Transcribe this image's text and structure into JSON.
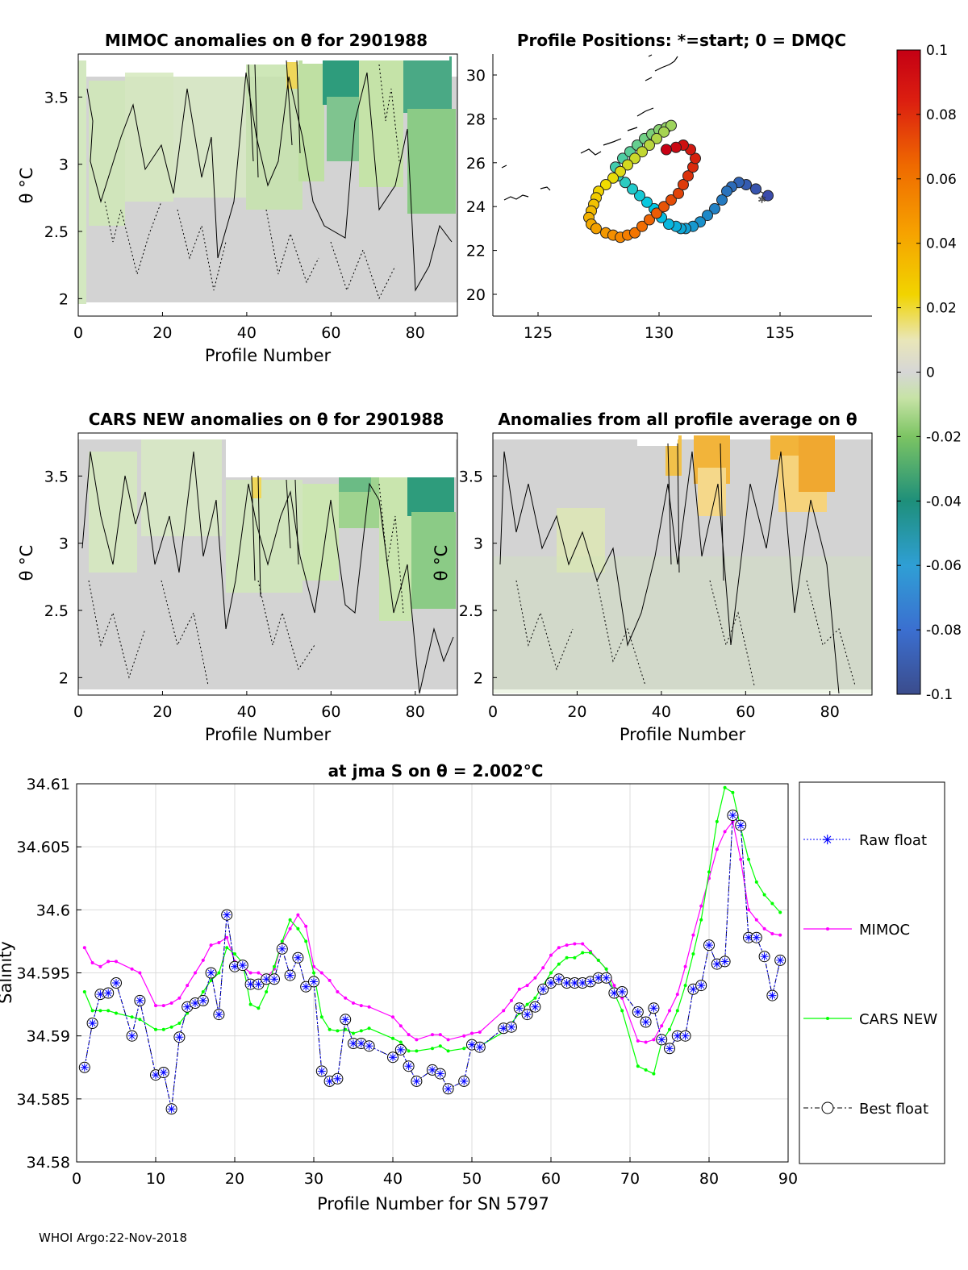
{
  "panels": {
    "mimoc": {
      "title": "MIMOC anomalies on θ  for 2901988",
      "xlabel": "Profile Number",
      "ylabel": "θ °C",
      "xticks": [
        "0",
        "20",
        "40",
        "60",
        "80"
      ],
      "yticks": [
        "2",
        "2.5",
        "3",
        "3.5"
      ]
    },
    "positions": {
      "title": "Profile Positions: *=start; 0 = DMQC",
      "xticks": [
        "125",
        "130",
        "135"
      ],
      "yticks": [
        "20",
        "22",
        "24",
        "26",
        "28",
        "30"
      ]
    },
    "cars": {
      "title": "CARS NEW anomalies on θ for 2901988",
      "xlabel": "Profile Number",
      "ylabel": "θ °C",
      "xticks": [
        "0",
        "20",
        "40",
        "60",
        "80"
      ],
      "yticks": [
        "2",
        "2.5",
        "3",
        "3.5"
      ]
    },
    "avg": {
      "title": "Anomalies from all profile average on θ",
      "xlabel": "Profile Number",
      "ylabel": "θ °C",
      "xticks": [
        "0",
        "20",
        "40",
        "60",
        "80"
      ],
      "yticks": [
        "2",
        "2.5",
        "3",
        "3.5"
      ]
    }
  },
  "colorbar": {
    "ticks": [
      "0.1",
      "0.08",
      "0.06",
      "0.04",
      "0.02",
      "0",
      "-0.02",
      "-0.04",
      "-0.06",
      "-0.08",
      "-0.1"
    ],
    "range": [
      -0.1,
      0.1
    ]
  },
  "chart_data": {
    "type": "line",
    "title": "at jma S on θ = 2.002°C",
    "xlabel": "Profile Number for SN 5797",
    "ylabel": "Salinity",
    "xlim": [
      0,
      90
    ],
    "ylim": [
      34.58,
      34.61
    ],
    "xticks": [
      "0",
      "10",
      "20",
      "30",
      "40",
      "50",
      "60",
      "70",
      "80",
      "90"
    ],
    "yticks": [
      "34.58",
      "34.585",
      "34.59",
      "34.595",
      "34.6",
      "34.605",
      "34.61"
    ],
    "series": [
      {
        "name": "Raw float",
        "color": "#0000ff",
        "x": [
          1,
          2,
          3,
          4,
          5,
          7,
          8,
          10,
          11,
          12,
          13,
          14,
          15,
          16,
          17,
          18,
          19,
          20,
          21,
          22,
          23,
          24,
          25,
          26,
          27,
          28,
          29,
          30,
          31,
          32,
          33,
          34,
          35,
          36,
          37,
          40,
          41,
          42,
          43,
          45,
          46,
          47,
          49,
          50,
          51,
          54,
          55,
          56,
          57,
          58,
          59,
          60,
          61,
          62,
          63,
          64,
          65,
          66,
          67,
          68,
          69,
          71,
          72,
          73,
          74,
          75,
          76,
          77,
          78,
          79,
          80,
          81,
          82,
          83,
          84,
          85,
          86,
          87,
          88,
          89
        ],
        "y": [
          34.5875,
          34.591,
          34.5933,
          34.5934,
          34.5942,
          34.59,
          34.5928,
          34.5869,
          34.5871,
          34.5842,
          34.5899,
          34.5923,
          34.5926,
          34.5928,
          34.595,
          34.5917,
          34.5996,
          34.5955,
          34.5956,
          34.5941,
          34.5941,
          34.5945,
          34.5945,
          34.5969,
          34.5948,
          34.5962,
          34.5939,
          34.5943,
          34.5872,
          34.5864,
          34.5866,
          34.5913,
          34.5894,
          34.5894,
          34.5892,
          34.5883,
          34.5889,
          34.5876,
          34.5864,
          34.5873,
          34.587,
          34.5858,
          34.5864,
          34.5893,
          34.5891,
          34.5906,
          34.5907,
          34.5922,
          34.5917,
          34.5923,
          34.5937,
          34.5942,
          34.5945,
          34.5942,
          34.5942,
          34.5942,
          34.5943,
          34.5946,
          34.5946,
          34.5934,
          34.5935,
          34.5919,
          34.5911,
          34.5922,
          34.5897,
          34.589,
          34.59,
          34.59,
          34.5937,
          34.594,
          34.5972,
          34.5957,
          34.5959,
          34.6075,
          34.6067,
          34.5978,
          34.5978,
          34.5963,
          34.5932,
          34.596
        ]
      },
      {
        "name": "MIMOC",
        "color": "#ff00ff",
        "x": [
          1,
          2,
          3,
          4,
          5,
          7,
          8,
          10,
          11,
          12,
          13,
          14,
          15,
          16,
          17,
          18,
          19,
          20,
          21,
          22,
          23,
          24,
          25,
          26,
          27,
          28,
          29,
          30,
          31,
          32,
          33,
          34,
          35,
          36,
          37,
          40,
          41,
          42,
          43,
          45,
          46,
          47,
          49,
          50,
          51,
          54,
          55,
          56,
          57,
          58,
          59,
          60,
          61,
          62,
          63,
          64,
          65,
          66,
          67,
          68,
          69,
          71,
          72,
          73,
          74,
          75,
          76,
          77,
          78,
          79,
          80,
          81,
          82,
          83,
          84,
          85,
          86,
          87,
          88,
          89
        ],
        "y": [
          34.597,
          34.5958,
          34.5955,
          34.5959,
          34.5959,
          34.5953,
          34.595,
          34.5924,
          34.5924,
          34.5926,
          34.593,
          34.594,
          34.595,
          34.596,
          34.5972,
          34.5974,
          34.5978,
          34.5959,
          34.5955,
          34.595,
          34.595,
          34.5946,
          34.5953,
          34.5974,
          34.5985,
          34.5996,
          34.5987,
          34.5955,
          34.595,
          34.5944,
          34.5935,
          34.593,
          34.5926,
          34.5924,
          34.5923,
          34.5915,
          34.5908,
          34.5901,
          34.5897,
          34.5901,
          34.5901,
          34.5897,
          34.59,
          34.5902,
          34.5903,
          34.592,
          34.5928,
          34.5937,
          34.594,
          34.5946,
          34.5954,
          34.5964,
          34.597,
          34.5972,
          34.5973,
          34.5973,
          34.5967,
          34.596,
          34.5953,
          34.594,
          34.593,
          34.5896,
          34.5895,
          34.5897,
          34.5908,
          34.592,
          34.5933,
          34.5955,
          34.598,
          34.6003,
          34.6025,
          34.6048,
          34.6062,
          34.607,
          34.604,
          34.6,
          34.5992,
          34.5985,
          34.5981,
          34.598
        ]
      },
      {
        "name": "CARS NEW",
        "color": "#00ff00",
        "x": [
          1,
          2,
          3,
          4,
          5,
          7,
          8,
          10,
          11,
          12,
          13,
          14,
          15,
          16,
          17,
          18,
          19,
          20,
          21,
          22,
          23,
          24,
          25,
          26,
          27,
          28,
          29,
          30,
          31,
          32,
          33,
          34,
          35,
          36,
          37,
          40,
          41,
          42,
          43,
          45,
          46,
          47,
          49,
          50,
          51,
          54,
          55,
          56,
          57,
          58,
          59,
          60,
          61,
          62,
          63,
          64,
          65,
          66,
          67,
          68,
          69,
          71,
          72,
          73,
          74,
          75,
          76,
          77,
          78,
          79,
          80,
          81,
          82,
          83,
          84,
          85,
          86,
          87,
          88,
          89
        ],
        "y": [
          34.5935,
          34.592,
          34.592,
          34.592,
          34.5918,
          34.5915,
          34.5913,
          34.5905,
          34.5905,
          34.5907,
          34.591,
          34.5918,
          34.5925,
          34.5935,
          34.5944,
          34.595,
          34.597,
          34.5965,
          34.5958,
          34.5925,
          34.5922,
          34.5935,
          34.5955,
          34.5975,
          34.5992,
          34.5985,
          34.5975,
          34.595,
          34.5915,
          34.5905,
          34.5904,
          34.5905,
          34.5902,
          34.5904,
          34.5906,
          34.5898,
          34.5895,
          34.5888,
          34.5888,
          34.589,
          34.5892,
          34.5888,
          34.589,
          34.5893,
          34.5892,
          34.5903,
          34.591,
          34.5918,
          34.5925,
          34.593,
          34.594,
          34.595,
          34.5957,
          34.5962,
          34.5962,
          34.5966,
          34.5966,
          34.596,
          34.5953,
          34.5934,
          34.592,
          34.5876,
          34.5873,
          34.587,
          34.5895,
          34.5905,
          34.592,
          34.594,
          34.5965,
          34.5992,
          34.603,
          34.607,
          34.6097,
          34.6093,
          34.6065,
          34.604,
          34.6022,
          34.6012,
          34.6005,
          34.5998
        ]
      },
      {
        "name": "Best float",
        "color": "#000000",
        "x": [
          1,
          2,
          3,
          4,
          5,
          7,
          8,
          10,
          11,
          12,
          13,
          14,
          15,
          16,
          17,
          18,
          19,
          20,
          21,
          22,
          23,
          24,
          25,
          26,
          27,
          28,
          29,
          30,
          31,
          32,
          33,
          34,
          35,
          36,
          37,
          40,
          41,
          42,
          43,
          45,
          46,
          47,
          49,
          50,
          51,
          54,
          55,
          56,
          57,
          58,
          59,
          60,
          61,
          62,
          63,
          64,
          65,
          66,
          67,
          68,
          69,
          71,
          72,
          73,
          74,
          75,
          76,
          77,
          78,
          79,
          80,
          81,
          82,
          83,
          84,
          85,
          86,
          87,
          88,
          89
        ],
        "y": [
          34.5875,
          34.591,
          34.5933,
          34.5934,
          34.5942,
          34.59,
          34.5928,
          34.5869,
          34.5871,
          34.5842,
          34.5899,
          34.5923,
          34.5926,
          34.5928,
          34.595,
          34.5917,
          34.5996,
          34.5955,
          34.5956,
          34.5941,
          34.5941,
          34.5945,
          34.5945,
          34.5969,
          34.5948,
          34.5962,
          34.5939,
          34.5943,
          34.5872,
          34.5864,
          34.5866,
          34.5913,
          34.5894,
          34.5894,
          34.5892,
          34.5883,
          34.5889,
          34.5876,
          34.5864,
          34.5873,
          34.587,
          34.5858,
          34.5864,
          34.5893,
          34.5891,
          34.5906,
          34.5907,
          34.5922,
          34.5917,
          34.5923,
          34.5937,
          34.5942,
          34.5945,
          34.5942,
          34.5942,
          34.5942,
          34.5943,
          34.5946,
          34.5946,
          34.5934,
          34.5935,
          34.5919,
          34.5911,
          34.5922,
          34.5897,
          34.589,
          34.59,
          34.59,
          34.5937,
          34.594,
          34.5972,
          34.5957,
          34.5959,
          34.6075,
          34.6067,
          34.5978,
          34.5978,
          34.5963,
          34.5932,
          34.596
        ]
      }
    ],
    "legend": [
      "Raw float",
      "MIMOC",
      "CARS NEW",
      "Best float"
    ]
  },
  "track": {
    "lon": [
      134.5,
      134.0,
      133.6,
      133.3,
      133.0,
      132.8,
      132.6,
      132.3,
      132.0,
      131.7,
      131.4,
      131.1,
      130.9,
      130.7,
      130.4,
      130.1,
      129.8,
      129.5,
      129.2,
      128.9,
      128.6,
      128.3,
      128.2,
      128.5,
      128.8,
      129.1,
      129.4,
      129.7,
      130.0,
      130.3,
      130.5,
      130.2,
      129.9,
      129.6,
      129.3,
      129.0,
      128.7,
      128.4,
      128.1,
      127.8,
      127.5,
      127.4,
      127.3,
      127.2,
      127.1,
      127.2,
      127.4,
      127.8,
      128.1,
      128.4,
      128.7,
      129.0,
      129.3,
      129.6,
      129.9,
      130.2,
      130.5,
      130.8,
      131.0,
      131.2,
      131.4,
      131.5,
      131.3,
      131.0,
      130.7,
      130.3
    ],
    "lat": [
      24.5,
      24.8,
      25.0,
      25.1,
      24.9,
      24.7,
      24.3,
      23.9,
      23.6,
      23.3,
      23.1,
      23.0,
      23.0,
      23.1,
      23.2,
      23.5,
      23.9,
      24.2,
      24.5,
      24.8,
      25.1,
      25.4,
      25.8,
      26.2,
      26.5,
      26.8,
      27.1,
      27.3,
      27.5,
      27.6,
      27.7,
      27.4,
      27.1,
      26.8,
      26.5,
      26.2,
      25.9,
      25.6,
      25.3,
      25.0,
      24.7,
      24.4,
      24.1,
      23.8,
      23.5,
      23.2,
      23.0,
      22.8,
      22.7,
      22.6,
      22.7,
      22.8,
      23.1,
      23.4,
      23.7,
      24.0,
      24.3,
      24.6,
      25.0,
      25.4,
      25.8,
      26.2,
      26.6,
      26.8,
      26.7,
      26.6
    ]
  },
  "footer": "WHOI Argo:22-Nov-2018"
}
